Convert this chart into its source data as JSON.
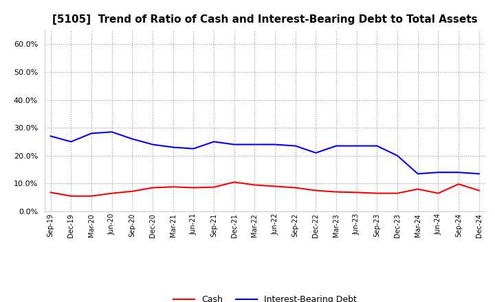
{
  "title": "[5105]  Trend of Ratio of Cash and Interest-Bearing Debt to Total Assets",
  "x_labels": [
    "Sep-19",
    "Dec-19",
    "Mar-20",
    "Jun-20",
    "Sep-20",
    "Dec-20",
    "Mar-21",
    "Jun-21",
    "Sep-21",
    "Dec-21",
    "Mar-22",
    "Jun-22",
    "Sep-22",
    "Dec-22",
    "Mar-23",
    "Jun-23",
    "Sep-23",
    "Dec-23",
    "Mar-24",
    "Jun-24",
    "Sep-24",
    "Dec-24"
  ],
  "cash": [
    6.8,
    5.5,
    5.5,
    6.5,
    7.2,
    8.5,
    8.8,
    8.5,
    8.7,
    10.5,
    9.5,
    9.0,
    8.5,
    7.5,
    7.0,
    6.8,
    6.5,
    6.5,
    8.0,
    6.5,
    9.8,
    7.5
  ],
  "interest_bearing_debt": [
    27.0,
    25.0,
    28.0,
    28.5,
    26.0,
    24.0,
    23.0,
    22.5,
    25.0,
    24.0,
    24.0,
    24.0,
    23.5,
    21.0,
    23.5,
    23.5,
    23.5,
    20.0,
    13.5,
    14.0,
    14.0,
    13.5
  ],
  "cash_color": "#ff0000",
  "ibd_color": "#0000ff",
  "background_color": "#ffffff",
  "plot_bg_color": "#ffffff",
  "grid_color": "#999999",
  "ylim": [
    0,
    65
  ],
  "yticks": [
    0.0,
    10.0,
    20.0,
    30.0,
    40.0,
    50.0,
    60.0
  ],
  "title_fontsize": 11,
  "legend_labels": [
    "Cash",
    "Interest-Bearing Debt"
  ]
}
